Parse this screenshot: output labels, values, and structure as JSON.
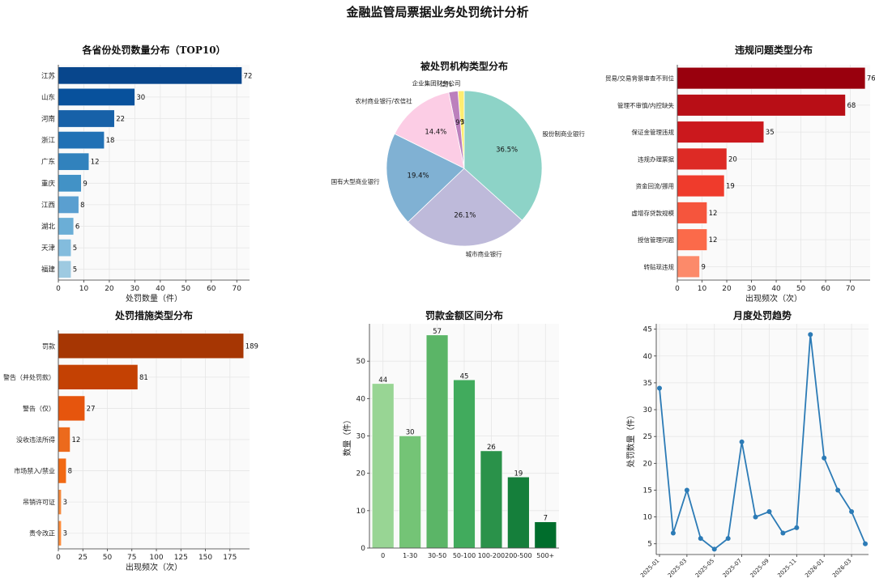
{
  "title": "金融监管局票据业务处罚统计分析",
  "chart_data": [
    {
      "id": "province",
      "type": "bar",
      "orientation": "horizontal",
      "title": "各省份处罚数量分布（TOP10）",
      "xlabel": "处罚数量（件）",
      "categories": [
        "江苏",
        "山东",
        "河南",
        "浙江",
        "广东",
        "重庆",
        "江西",
        "湖北",
        "天津",
        "福建"
      ],
      "values": [
        72,
        30,
        22,
        18,
        12,
        9,
        8,
        6,
        5,
        5
      ],
      "xlim": [
        0,
        75
      ],
      "xticks": [
        0,
        10,
        20,
        30,
        40,
        50,
        60,
        70
      ],
      "colors": [
        "#08468c",
        "#08519c",
        "#1761a8",
        "#2171b5",
        "#3182bd",
        "#4292c6",
        "#5a9fd0",
        "#6baed6",
        "#83bcdd",
        "#9ecae1"
      ]
    },
    {
      "id": "institution",
      "type": "pie",
      "title": "被处罚机构类型分布",
      "slices": [
        {
          "label": "企业集团财务公司",
          "value": 1.3,
          "pct": "1.3%",
          "color": "#ffed6f"
        },
        {
          "label": "信托",
          "value": 1.9,
          "pct": "1.9%",
          "color": "#bc80bd"
        },
        {
          "label": "农村商业银行/农信社",
          "value": 14.4,
          "pct": "14.4%",
          "color": "#fccde5"
        },
        {
          "label": "国有大型商业银行",
          "value": 19.4,
          "pct": "19.4%",
          "color": "#80b1d3"
        },
        {
          "label": "城市商业银行",
          "value": 26.1,
          "pct": "26.1%",
          "color": "#bebada"
        },
        {
          "label": "股份制商业银行",
          "value": 36.5,
          "pct": "36.5%",
          "color": "#8dd3c7"
        }
      ]
    },
    {
      "id": "violation",
      "type": "bar",
      "orientation": "horizontal",
      "title": "违规问题类型分布",
      "xlabel": "出现频次（次）",
      "categories": [
        "贸易/交易背景审查不到位",
        "管理不审慎/内控缺失",
        "保证金管理违规",
        "违规办理票据",
        "资金回流/挪用",
        "虚增存贷款规模",
        "授信管理问题",
        "转贴现违规"
      ],
      "values": [
        76,
        68,
        35,
        20,
        19,
        12,
        12,
        9
      ],
      "xlim": [
        0,
        78
      ],
      "xticks": [
        0,
        10,
        20,
        30,
        40,
        50,
        60,
        70
      ],
      "colors": [
        "#99000d",
        "#b80e16",
        "#cb181d",
        "#dd2a25",
        "#ef3b2c",
        "#f5553d",
        "#fb6a4a",
        "#fc8a6a"
      ]
    },
    {
      "id": "measure",
      "type": "bar",
      "orientation": "horizontal",
      "title": "处罚措施类型分布",
      "xlabel": "出现频次（次）",
      "categories": [
        "罚款",
        "警告（并处罚款）",
        "警告（仅）",
        "没收违法所得",
        "市场禁入/禁业",
        "吊销许可证",
        "责令改正"
      ],
      "values": [
        189,
        81,
        27,
        12,
        8,
        3,
        3
      ],
      "xlim": [
        0,
        195
      ],
      "xticks": [
        0,
        25,
        50,
        75,
        100,
        125,
        150,
        175
      ],
      "colors": [
        "#a63603",
        "#c44103",
        "#e6550d",
        "#ec6a1c",
        "#f16913",
        "#f58a3e",
        "#fd8d3c"
      ]
    },
    {
      "id": "amount",
      "type": "bar",
      "orientation": "vertical",
      "title": "罚款金额区间分布",
      "ylabel": "数量（件）",
      "categories": [
        "0",
        "1-30",
        "30-50",
        "50-100",
        "100-200",
        "200-500",
        "500+"
      ],
      "values": [
        44,
        30,
        57,
        45,
        26,
        19,
        7
      ],
      "ylim": [
        0,
        60
      ],
      "yticks": [
        0,
        10,
        20,
        30,
        40,
        50
      ],
      "colors": [
        "#98d594",
        "#74c476",
        "#5bb567",
        "#41ab5d",
        "#2a924a",
        "#157f3b",
        "#006d2c"
      ]
    },
    {
      "id": "monthly",
      "type": "line",
      "title": "月度处罚趋势",
      "ylabel": "处罚数量（件）",
      "x": [
        "2025-01",
        "2025-02",
        "2025-03",
        "2025-04",
        "2025-05",
        "2025-06",
        "2025-07",
        "2025-08",
        "2025-09",
        "2025-10",
        "2025-11",
        "2025-12",
        "2026-01",
        "2026-02",
        "2026-03",
        "2026-04"
      ],
      "y": [
        34,
        7,
        15,
        6,
        4,
        6,
        24,
        10,
        11,
        7,
        8,
        44,
        21,
        15,
        11,
        5
      ],
      "xticklabels": [
        "2025-01",
        "2025-03",
        "2025-05",
        "2025-07",
        "2025-09",
        "2025-11",
        "2026-01",
        "2026-03"
      ],
      "ylim": [
        3,
        46
      ],
      "yticks": [
        5,
        10,
        15,
        20,
        25,
        30,
        35,
        40,
        45
      ],
      "color": "#2c7bb6"
    }
  ]
}
